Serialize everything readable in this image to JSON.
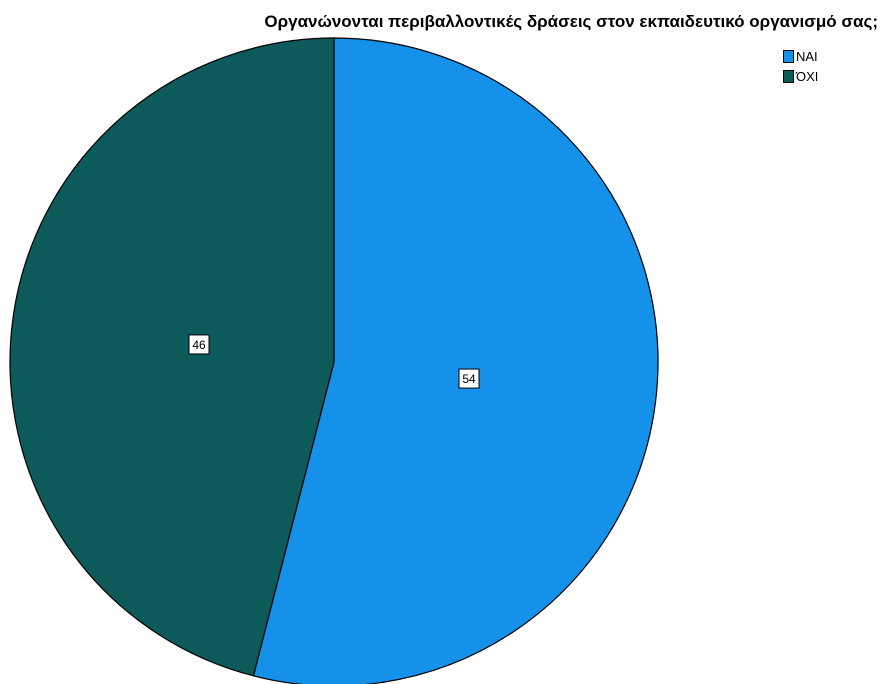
{
  "chart_data": {
    "type": "pie",
    "title": "Οργανώνονται περιβαλλοντικές δράσεις στον εκπαιδευτικό οργανισμό σας;",
    "categories": [
      "ΝΑΙ",
      "ΌΧΙ"
    ],
    "values": [
      54,
      46
    ],
    "colors": [
      "#1591EA",
      "#0D5A5A"
    ],
    "legend_position": "top-right",
    "data_labels": [
      "54",
      "46"
    ]
  }
}
